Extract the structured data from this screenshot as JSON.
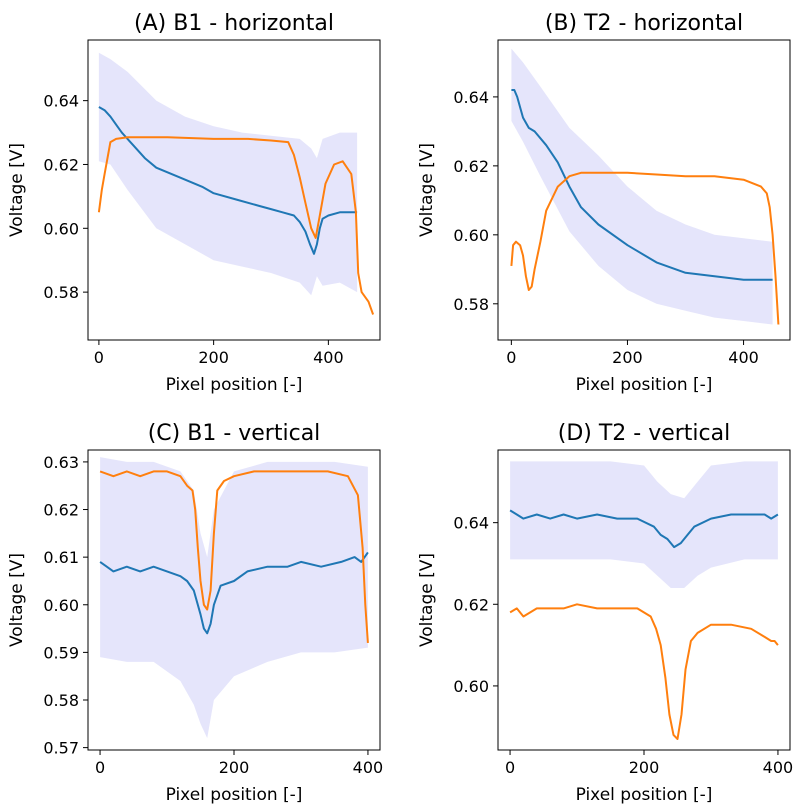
{
  "colors": {
    "blue": "#1f77b4",
    "orange": "#ff7f0e",
    "band": "#e5e5fb"
  },
  "chart_data": [
    {
      "id": "A",
      "type": "line",
      "title": "(A) B1 - horizontal",
      "xlabel": "Pixel position [-]",
      "ylabel": "Voltage [V]",
      "xlim": [
        -19,
        490
      ],
      "ylim": [
        0.565,
        0.659
      ],
      "xticks": [
        0,
        200,
        400
      ],
      "yticks": [
        0.58,
        0.6,
        0.62,
        0.64
      ],
      "ytick_labels": [
        "0.58",
        "0.60",
        "0.62",
        "0.64"
      ],
      "series": [
        {
          "color": "blue",
          "values_x": [
            0,
            10,
            20,
            40,
            60,
            80,
            100,
            140,
            180,
            200,
            240,
            280,
            300,
            320,
            340,
            350,
            360,
            368,
            375,
            380,
            385,
            390,
            400,
            420,
            440,
            450
          ],
          "values_y": [
            0.638,
            0.637,
            0.635,
            0.63,
            0.626,
            0.622,
            0.619,
            0.616,
            0.613,
            0.611,
            0.609,
            0.607,
            0.606,
            0.605,
            0.604,
            0.602,
            0.599,
            0.595,
            0.592,
            0.595,
            0.6,
            0.603,
            0.604,
            0.605,
            0.605,
            0.605
          ]
        },
        {
          "color": "orange",
          "values_x": [
            0,
            5,
            10,
            15,
            20,
            30,
            50,
            80,
            120,
            200,
            260,
            300,
            330,
            340,
            350,
            360,
            370,
            378,
            385,
            395,
            410,
            425,
            440,
            448,
            452,
            458,
            470,
            478
          ],
          "values_y": [
            0.605,
            0.612,
            0.617,
            0.622,
            0.627,
            0.628,
            0.6285,
            0.6285,
            0.6285,
            0.628,
            0.628,
            0.6275,
            0.627,
            0.623,
            0.616,
            0.608,
            0.6,
            0.597,
            0.604,
            0.614,
            0.62,
            0.621,
            0.617,
            0.605,
            0.586,
            0.58,
            0.577,
            0.573
          ]
        }
      ],
      "band": {
        "x": [
          0,
          20,
          50,
          100,
          150,
          200,
          250,
          300,
          350,
          370,
          380,
          390,
          420,
          450
        ],
        "upper": [
          0.655,
          0.653,
          0.649,
          0.64,
          0.635,
          0.632,
          0.63,
          0.629,
          0.628,
          0.625,
          0.622,
          0.628,
          0.63,
          0.63
        ],
        "lower": [
          0.621,
          0.62,
          0.612,
          0.6,
          0.595,
          0.59,
          0.588,
          0.586,
          0.583,
          0.579,
          0.585,
          0.582,
          0.583,
          0.58
        ]
      }
    },
    {
      "id": "B",
      "type": "line",
      "title": "(B) T2 - horizontal",
      "xlabel": "Pixel position [-]",
      "ylabel": "Voltage [V]",
      "xlim": [
        -23,
        480
      ],
      "ylim": [
        0.5695,
        0.6565
      ],
      "xticks": [
        0,
        200,
        400
      ],
      "yticks": [
        0.58,
        0.6,
        0.62,
        0.64
      ],
      "ytick_labels": [
        "0.58",
        "0.60",
        "0.62",
        "0.64"
      ],
      "series": [
        {
          "color": "blue",
          "values_x": [
            0,
            5,
            10,
            20,
            30,
            40,
            60,
            80,
            100,
            120,
            150,
            200,
            250,
            300,
            350,
            400,
            430,
            450
          ],
          "values_y": [
            0.642,
            0.642,
            0.64,
            0.634,
            0.631,
            0.63,
            0.626,
            0.621,
            0.614,
            0.608,
            0.603,
            0.597,
            0.592,
            0.589,
            0.588,
            0.587,
            0.587,
            0.587
          ]
        },
        {
          "color": "orange",
          "values_x": [
            0,
            3,
            8,
            15,
            20,
            25,
            30,
            35,
            40,
            50,
            60,
            80,
            100,
            120,
            150,
            200,
            250,
            300,
            350,
            400,
            430,
            440,
            445,
            450,
            455,
            460
          ],
          "values_y": [
            0.591,
            0.597,
            0.598,
            0.597,
            0.594,
            0.588,
            0.584,
            0.585,
            0.59,
            0.598,
            0.607,
            0.614,
            0.617,
            0.618,
            0.618,
            0.618,
            0.6175,
            0.617,
            0.617,
            0.616,
            0.614,
            0.612,
            0.608,
            0.6,
            0.588,
            0.574
          ]
        }
      ],
      "band": {
        "x": [
          0,
          20,
          50,
          100,
          150,
          200,
          250,
          300,
          350,
          400,
          450
        ],
        "upper": [
          0.654,
          0.65,
          0.643,
          0.631,
          0.623,
          0.614,
          0.607,
          0.603,
          0.6,
          0.599,
          0.598
        ],
        "lower": [
          0.633,
          0.627,
          0.617,
          0.601,
          0.591,
          0.584,
          0.58,
          0.578,
          0.576,
          0.575,
          0.574
        ]
      }
    },
    {
      "id": "C",
      "type": "line",
      "title": "(C) B1 - vertical",
      "xlabel": "Pixel position [-]",
      "ylabel": "Voltage [V]",
      "xlim": [
        -18,
        418
      ],
      "ylim": [
        0.5695,
        0.6325
      ],
      "xticks": [
        0,
        200,
        400
      ],
      "yticks": [
        0.57,
        0.58,
        0.59,
        0.6,
        0.61,
        0.62,
        0.63
      ],
      "ytick_labels": [
        "0.57",
        "0.58",
        "0.59",
        "0.60",
        "0.61",
        "0.62",
        "0.63"
      ],
      "series": [
        {
          "color": "blue",
          "values_x": [
            0,
            10,
            20,
            40,
            60,
            80,
            100,
            120,
            130,
            140,
            150,
            155,
            160,
            165,
            170,
            180,
            200,
            220,
            250,
            280,
            300,
            330,
            360,
            380,
            390,
            400
          ],
          "values_y": [
            0.609,
            0.608,
            0.607,
            0.608,
            0.607,
            0.608,
            0.607,
            0.606,
            0.605,
            0.603,
            0.598,
            0.595,
            0.594,
            0.596,
            0.6,
            0.604,
            0.605,
            0.607,
            0.608,
            0.608,
            0.609,
            0.608,
            0.609,
            0.61,
            0.609,
            0.611
          ]
        },
        {
          "color": "orange",
          "values_x": [
            0,
            20,
            40,
            60,
            80,
            100,
            120,
            130,
            138,
            142,
            146,
            150,
            155,
            160,
            165,
            170,
            175,
            185,
            200,
            230,
            260,
            300,
            340,
            370,
            385,
            392,
            396,
            400
          ],
          "values_y": [
            0.628,
            0.627,
            0.628,
            0.627,
            0.628,
            0.628,
            0.627,
            0.625,
            0.624,
            0.62,
            0.612,
            0.605,
            0.6,
            0.599,
            0.603,
            0.615,
            0.624,
            0.626,
            0.627,
            0.628,
            0.628,
            0.628,
            0.628,
            0.627,
            0.623,
            0.612,
            0.6,
            0.592
          ]
        }
      ],
      "band": {
        "x": [
          0,
          40,
          80,
          120,
          140,
          150,
          160,
          170,
          200,
          250,
          300,
          350,
          400
        ],
        "upper": [
          0.631,
          0.63,
          0.63,
          0.628,
          0.624,
          0.615,
          0.61,
          0.62,
          0.628,
          0.63,
          0.63,
          0.63,
          0.629
        ],
        "lower": [
          0.589,
          0.588,
          0.588,
          0.584,
          0.579,
          0.575,
          0.572,
          0.58,
          0.585,
          0.588,
          0.59,
          0.59,
          0.591
        ]
      }
    },
    {
      "id": "D",
      "type": "line",
      "title": "(D) T2 - vertical",
      "xlabel": "Pixel position [-]",
      "ylabel": "Voltage [V]",
      "xlim": [
        -18,
        418
      ],
      "ylim": [
        0.5843,
        0.6578
      ],
      "xticks": [
        0,
        200,
        400
      ],
      "yticks": [
        0.6,
        0.62,
        0.64
      ],
      "ytick_labels": [
        "0.60",
        "0.62",
        "0.64"
      ],
      "series": [
        {
          "color": "blue",
          "values_x": [
            0,
            10,
            20,
            40,
            60,
            80,
            100,
            130,
            160,
            190,
            215,
            225,
            235,
            245,
            255,
            265,
            275,
            300,
            330,
            360,
            380,
            390,
            400
          ],
          "values_y": [
            0.643,
            0.642,
            0.641,
            0.642,
            0.641,
            0.642,
            0.641,
            0.642,
            0.641,
            0.641,
            0.639,
            0.637,
            0.636,
            0.634,
            0.635,
            0.637,
            0.639,
            0.641,
            0.642,
            0.642,
            0.642,
            0.641,
            0.642
          ]
        },
        {
          "color": "orange",
          "values_x": [
            0,
            10,
            20,
            40,
            60,
            80,
            100,
            130,
            160,
            190,
            210,
            218,
            225,
            232,
            238,
            244,
            250,
            256,
            262,
            270,
            280,
            300,
            330,
            360,
            380,
            390,
            395,
            400
          ],
          "values_y": [
            0.618,
            0.619,
            0.617,
            0.619,
            0.619,
            0.619,
            0.62,
            0.619,
            0.619,
            0.619,
            0.617,
            0.614,
            0.61,
            0.602,
            0.593,
            0.588,
            0.587,
            0.593,
            0.604,
            0.611,
            0.613,
            0.615,
            0.615,
            0.614,
            0.612,
            0.611,
            0.611,
            0.61
          ]
        }
      ],
      "band": {
        "x": [
          0,
          50,
          100,
          150,
          200,
          220,
          240,
          260,
          280,
          300,
          350,
          400
        ],
        "upper": [
          0.655,
          0.655,
          0.655,
          0.655,
          0.654,
          0.65,
          0.647,
          0.646,
          0.65,
          0.654,
          0.655,
          0.655
        ],
        "lower": [
          0.631,
          0.631,
          0.631,
          0.631,
          0.63,
          0.627,
          0.624,
          0.624,
          0.627,
          0.629,
          0.631,
          0.631
        ]
      }
    }
  ]
}
